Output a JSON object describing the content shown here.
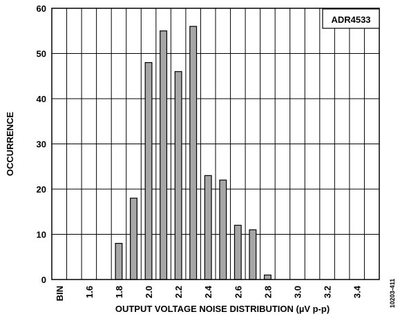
{
  "chart_data": {
    "type": "bar",
    "title": "",
    "legend_box": "ADR4533",
    "xlabel": "OUTPUT VOLTAGE NOISE DISTRIBUTION (µV p-p)",
    "ylabel": "OCCURRENCE",
    "side_code": "10203-411",
    "ylim": [
      0,
      60
    ],
    "yticks": [
      0,
      10,
      20,
      30,
      40,
      50,
      60
    ],
    "x_tick_labels": [
      "BIN",
      "1.6",
      "1.8",
      "2.0",
      "2.2",
      "2.4",
      "2.6",
      "2.8",
      "3.0",
      "3.2",
      "3.4"
    ],
    "categories": [
      "BIN",
      "1.5",
      "1.6",
      "1.7",
      "1.8",
      "1.9",
      "2.0",
      "2.1",
      "2.2",
      "2.3",
      "2.4",
      "2.5",
      "2.6",
      "2.7",
      "2.8",
      "2.9",
      "3.0",
      "3.1",
      "3.2",
      "3.3",
      "3.4",
      "3.5"
    ],
    "values": [
      0,
      0,
      0,
      0,
      8,
      18,
      48,
      55,
      46,
      56,
      23,
      22,
      12,
      11,
      1,
      0,
      0,
      0,
      0,
      0,
      0,
      0
    ],
    "grid": true,
    "bar_color": "#a6a6a6",
    "bar_edge_color": "#000000"
  }
}
